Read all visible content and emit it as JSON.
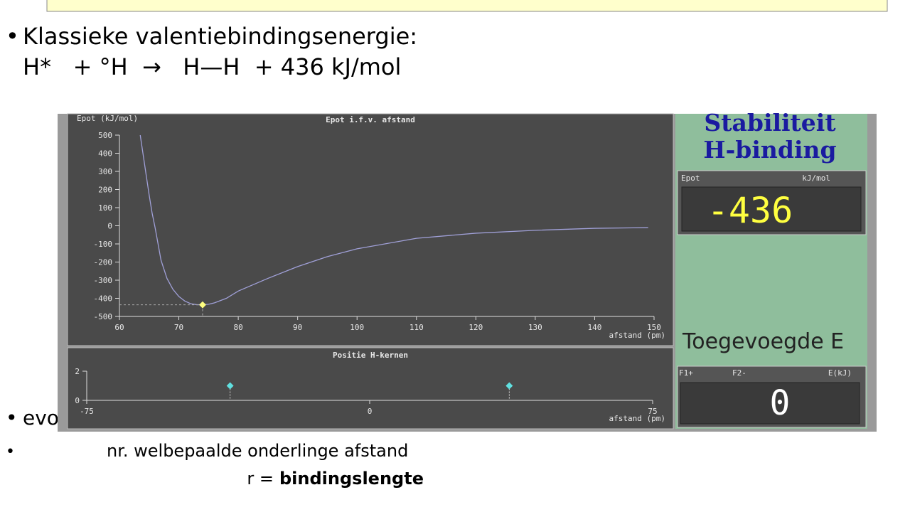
{
  "slide": {
    "heading": "Klassieke valentiebindingsenergie:",
    "equation": "H*   + °H  →   H—H  + 436 kJ/mol",
    "bullet2": "evo",
    "bullet3": "nr. welbepaalde onderlinge afstand",
    "definition_prefix": "r =",
    "definition_term": "bindingslengte"
  },
  "panel": {
    "title_lines": [
      "Stabiliteit",
      "H-binding"
    ],
    "epot_label": "Epot",
    "epot_unit": "kJ/mol",
    "epot_display": "-436",
    "added_label": "Toegevoegde E",
    "keys": [
      "F1+",
      "F2-",
      "E(kJ)"
    ],
    "added_display": "0"
  },
  "chart_data": [
    {
      "type": "line",
      "title": "Epot i.f.v. afstand",
      "y_label": "Epot (kJ/mol)",
      "x_label": "afstand (pm)",
      "xlim": [
        60,
        150
      ],
      "xticks": [
        60,
        70,
        80,
        90,
        100,
        110,
        120,
        130,
        140,
        150
      ],
      "ylim": [
        -500,
        500
      ],
      "yticks": [
        500,
        400,
        300,
        200,
        100,
        0,
        -100,
        -200,
        -300,
        -400,
        -500
      ],
      "series": [
        {
          "color": "#a0a0d8",
          "x": [
            63.5,
            64,
            64.5,
            65,
            65.5,
            66,
            67,
            68,
            69,
            70,
            71,
            72,
            73,
            74,
            75,
            76,
            78,
            80,
            85,
            90,
            95,
            100,
            110,
            120,
            130,
            140,
            149
          ],
          "values": [
            500,
            390,
            280,
            170,
            70,
            -10,
            -190,
            -290,
            -350,
            -390,
            -415,
            -430,
            -435,
            -436,
            -433,
            -425,
            -400,
            -360,
            -290,
            -225,
            -170,
            -127,
            -69,
            -41,
            -25,
            -14,
            -10
          ]
        }
      ],
      "highlight": {
        "x": 74,
        "y": -436,
        "color": "#ffff80"
      }
    },
    {
      "type": "scatter",
      "title": "Positie H-kernen",
      "x_label": "afstand (pm)",
      "xlim": [
        -75,
        75
      ],
      "xticks": [
        -75,
        0,
        75
      ],
      "ylim": [
        0,
        2
      ],
      "yticks": [
        2,
        0
      ],
      "series": [
        {
          "color": "#60e0e0",
          "x": [
            -37,
            37
          ],
          "values": [
            1,
            1
          ]
        }
      ]
    }
  ]
}
